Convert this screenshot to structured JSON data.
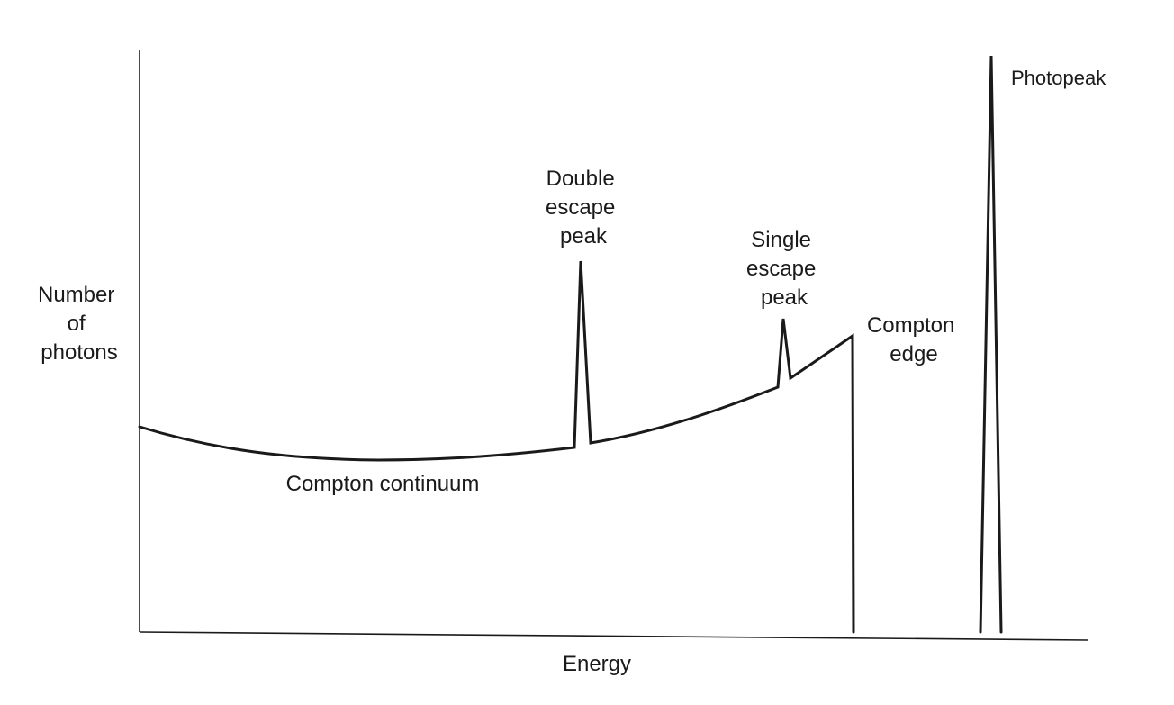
{
  "axes": {
    "x_label": "Energy",
    "y_label_lines": [
      "Number",
      "of",
      "photons"
    ]
  },
  "annotations": {
    "compton_continuum": "Compton continuum",
    "double_escape_lines": [
      "Double",
      "escape",
      "peak"
    ],
    "single_escape_lines": [
      "Single",
      "escape",
      "peak"
    ],
    "compton_edge_lines": [
      "Compton",
      "edge"
    ],
    "photopeak": "Photopeak"
  }
}
